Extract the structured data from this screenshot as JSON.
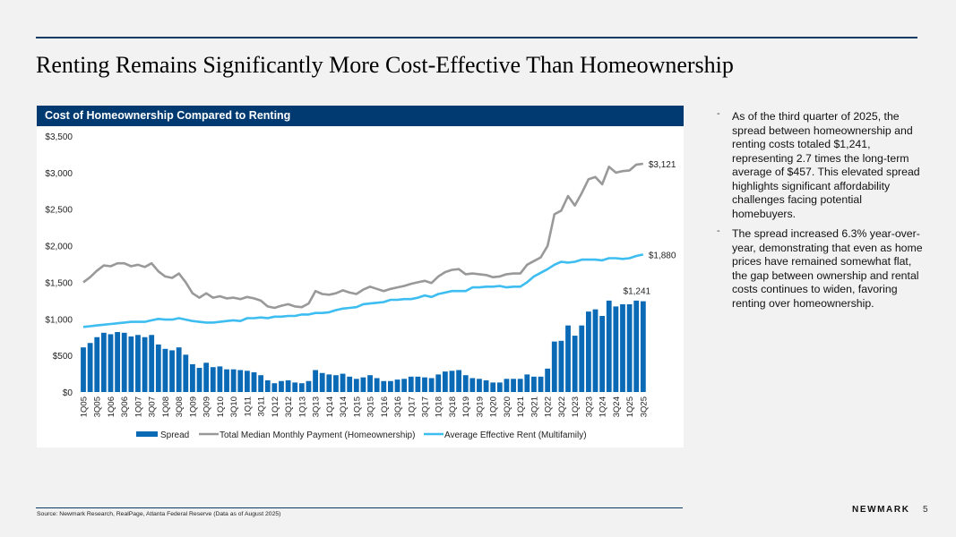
{
  "page": {
    "title": "Renting Remains Significantly More Cost-Effective Than Homeownership",
    "source": "Source: Newmark Research, RealPage, Atlanta Federal Reserve (Data as of August 2025)",
    "brand": "NEWMARK",
    "page_number": "5"
  },
  "bullets": [
    {
      "text": "As of the third quarter of 2025, the spread between homeownership and renting costs totaled $1,241, representing 2.7 times the long-term average of $457. This elevated spread highlights significant affordability challenges facing potential homebuyers."
    },
    {
      "text": "The spread increased 6.3% year-over-year, demonstrating that even as home prices have remained somewhat flat, the gap between ownership and rental costs continues to widen, favoring renting over homeownership."
    }
  ],
  "colors": {
    "header_bg": "#003a70",
    "spread": "#0a6ab6",
    "homeownership": "#999999",
    "rent": "#3dbdf0"
  },
  "chart_data": {
    "type": "bar",
    "title": "Cost of Homeownership Compared to Renting",
    "xlabel": "",
    "ylabel": "",
    "ylim": [
      0,
      3500
    ],
    "yticks": [
      0,
      500,
      1000,
      1500,
      2000,
      2500,
      3000,
      3500
    ],
    "ytick_labels": [
      "$0",
      "$500",
      "$1,000",
      "$1,500",
      "$2,000",
      "$2,500",
      "$3,000",
      "$3,500"
    ],
    "grid": false,
    "legend_position": "bottom",
    "categories": [
      "1Q05",
      "2Q05",
      "3Q05",
      "4Q05",
      "1Q06",
      "2Q06",
      "3Q06",
      "4Q06",
      "1Q07",
      "2Q07",
      "3Q07",
      "4Q07",
      "1Q08",
      "2Q08",
      "3Q08",
      "4Q08",
      "1Q09",
      "2Q09",
      "3Q09",
      "4Q09",
      "1Q10",
      "2Q10",
      "3Q10",
      "4Q10",
      "1Q11",
      "2Q11",
      "3Q11",
      "4Q11",
      "1Q12",
      "2Q12",
      "3Q12",
      "4Q12",
      "1Q13",
      "2Q13",
      "3Q13",
      "4Q13",
      "1Q14",
      "2Q14",
      "3Q14",
      "4Q14",
      "1Q15",
      "2Q15",
      "3Q15",
      "4Q15",
      "1Q16",
      "2Q16",
      "3Q16",
      "4Q16",
      "1Q17",
      "2Q17",
      "3Q17",
      "4Q17",
      "1Q18",
      "2Q18",
      "3Q18",
      "4Q18",
      "1Q19",
      "2Q19",
      "3Q19",
      "4Q19",
      "1Q20",
      "2Q20",
      "3Q20",
      "4Q20",
      "1Q21",
      "2Q21",
      "3Q21",
      "4Q21",
      "1Q22",
      "2Q22",
      "3Q22",
      "4Q22",
      "1Q23",
      "2Q23",
      "3Q23",
      "4Q23",
      "1Q24",
      "2Q24",
      "3Q24",
      "4Q24",
      "1Q25",
      "2Q25",
      "3Q25"
    ],
    "xtick_labels": [
      "1Q05",
      "3Q05",
      "1Q06",
      "3Q06",
      "1Q07",
      "3Q07",
      "1Q08",
      "3Q08",
      "1Q09",
      "3Q09",
      "1Q10",
      "3Q10",
      "1Q11",
      "3Q11",
      "1Q12",
      "3Q12",
      "1Q13",
      "3Q13",
      "1Q14",
      "3Q14",
      "1Q15",
      "3Q15",
      "1Q16",
      "3Q16",
      "1Q17",
      "3Q17",
      "1Q18",
      "3Q18",
      "1Q19",
      "3Q19",
      "1Q20",
      "3Q20",
      "1Q21",
      "3Q21",
      "1Q22",
      "3Q22",
      "1Q23",
      "3Q23",
      "1Q24",
      "3Q24",
      "1Q25",
      "3Q25"
    ],
    "series": [
      {
        "name": "Spread",
        "type": "bar",
        "values": [
          610,
          670,
          750,
          810,
          790,
          820,
          810,
          760,
          780,
          750,
          780,
          650,
          590,
          570,
          610,
          510,
          380,
          330,
          400,
          340,
          350,
          310,
          310,
          300,
          290,
          270,
          230,
          160,
          120,
          150,
          160,
          130,
          120,
          150,
          300,
          260,
          240,
          230,
          250,
          210,
          180,
          200,
          230,
          190,
          150,
          150,
          170,
          180,
          210,
          210,
          200,
          190,
          240,
          280,
          290,
          300,
          230,
          190,
          180,
          160,
          130,
          130,
          180,
          180,
          180,
          240,
          210,
          210,
          320,
          690,
          700,
          910,
          770,
          910,
          1100,
          1130,
          1040,
          1250,
          1170,
          1200,
          1200,
          1250,
          1241
        ]
      },
      {
        "name": "Total Median Monthly Payment (Homeownership)",
        "type": "line",
        "values": [
          1500,
          1570,
          1660,
          1730,
          1720,
          1760,
          1760,
          1720,
          1740,
          1710,
          1760,
          1650,
          1580,
          1560,
          1620,
          1500,
          1350,
          1290,
          1350,
          1290,
          1310,
          1280,
          1290,
          1270,
          1300,
          1280,
          1250,
          1170,
          1150,
          1180,
          1200,
          1170,
          1160,
          1210,
          1380,
          1340,
          1330,
          1350,
          1390,
          1360,
          1340,
          1400,
          1440,
          1410,
          1380,
          1410,
          1430,
          1450,
          1480,
          1500,
          1520,
          1490,
          1580,
          1640,
          1670,
          1680,
          1610,
          1620,
          1610,
          1600,
          1570,
          1580,
          1610,
          1620,
          1620,
          1740,
          1790,
          1840,
          2000,
          2430,
          2480,
          2680,
          2550,
          2720,
          2910,
          2940,
          2840,
          3080,
          3000,
          3020,
          3030,
          3110,
          3121
        ]
      },
      {
        "name": "Average Effective Rent (Multifamily)",
        "type": "line",
        "values": [
          890,
          900,
          910,
          920,
          930,
          940,
          950,
          960,
          960,
          960,
          980,
          1000,
          990,
          990,
          1010,
          990,
          970,
          960,
          950,
          950,
          960,
          970,
          980,
          970,
          1010,
          1010,
          1020,
          1010,
          1030,
          1030,
          1040,
          1040,
          1060,
          1060,
          1080,
          1080,
          1090,
          1120,
          1140,
          1150,
          1160,
          1200,
          1210,
          1220,
          1230,
          1260,
          1260,
          1270,
          1270,
          1290,
          1320,
          1300,
          1340,
          1360,
          1380,
          1380,
          1380,
          1430,
          1430,
          1440,
          1440,
          1450,
          1430,
          1440,
          1440,
          1500,
          1580,
          1630,
          1680,
          1740,
          1780,
          1770,
          1780,
          1810,
          1810,
          1810,
          1800,
          1830,
          1830,
          1820,
          1830,
          1860,
          1880
        ]
      }
    ],
    "data_labels": [
      {
        "series": "Spread",
        "category": "3Q25",
        "text": "$1,241"
      },
      {
        "series": "Total Median Monthly Payment (Homeownership)",
        "category": "3Q25",
        "text": "$3,121"
      },
      {
        "series": "Average Effective Rent (Multifamily)",
        "category": "3Q25",
        "text": "$1,880"
      }
    ]
  }
}
